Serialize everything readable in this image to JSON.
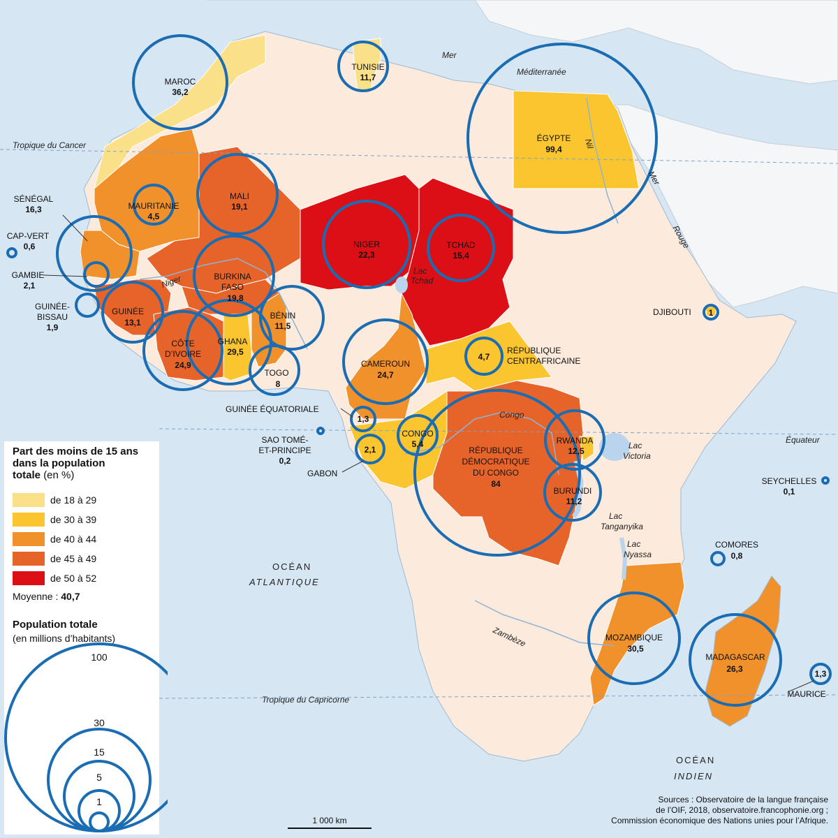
{
  "legend": {
    "title": "Part des moins de 15 ans dans la population",
    "title_line3": "totale",
    "title_unit": "(en %)",
    "classes": [
      {
        "label": "de 18 à 29",
        "color": "#fbe08a"
      },
      {
        "label": "de 30 à 39",
        "color": "#fac52f"
      },
      {
        "label": "de 40 à 44",
        "color": "#f0912c"
      },
      {
        "label": "de 45 à 49",
        "color": "#e6642a"
      },
      {
        "label": "de 50 à 52",
        "color": "#dc0f17"
      }
    ],
    "average_label": "Moyenne :",
    "average_value": "40,7",
    "pop_title": "Population totale",
    "pop_subtitle": "(en millions d’habitants)",
    "pop_circles": [
      "100",
      "30",
      "15",
      "5",
      "1"
    ]
  },
  "seas": {
    "med1": "Mer",
    "med2": "Méditerranée",
    "red1": "Mer",
    "red2": "Rouge",
    "atl1": "OCÉAN",
    "atl2": "ATLANTIQUE",
    "ind1": "OCÉAN",
    "ind2": "INDIEN"
  },
  "lines": {
    "cancer": "Tropique du Cancer",
    "capricorne": "Tropique du Capricorne",
    "equateur": "Équateur"
  },
  "features": {
    "nil": "Nil",
    "niger": "Niger",
    "congo": "Congo",
    "zambeze": "Zambèze",
    "lac_tchad1": "Lac",
    "lac_tchad2": "Tchad",
    "lac_victoria1": "Lac",
    "lac_victoria2": "Victoria",
    "lac_tanganyika1": "Lac",
    "lac_tanganyika2": "Tanganyika",
    "lac_nyassa1": "Lac",
    "lac_nyassa2": "Nyassa"
  },
  "countries": [
    {
      "name": "MAROC",
      "value": "36,2"
    },
    {
      "name": "TUNISIE",
      "value": "11,7"
    },
    {
      "name": "ÉGYPTE",
      "value": "99,4"
    },
    {
      "name": "MAURITANIE",
      "value": "4,5"
    },
    {
      "name": "MALI",
      "value": "19,1"
    },
    {
      "name": "NIGER",
      "value": "22,3"
    },
    {
      "name": "TCHAD",
      "value": "15,4"
    },
    {
      "name": "SÉNÉGAL",
      "value": "16,3"
    },
    {
      "name": "CAP-VERT",
      "value": "0,6"
    },
    {
      "name": "GAMBIE",
      "value": "2,1"
    },
    {
      "name": "GUINÉE-",
      "name2": "BISSAU",
      "value": "1,9"
    },
    {
      "name": "GUINÉE",
      "value": "13,1"
    },
    {
      "name": "BURKINA",
      "name2": "FASO",
      "value": "19,8"
    },
    {
      "name": "BÉNIN",
      "value": "11,5"
    },
    {
      "name": "CÔTE",
      "name2": "D’IVOIRE",
      "value": "24,9"
    },
    {
      "name": "GHANA",
      "value": "29,5"
    },
    {
      "name": "TOGO",
      "value": "8"
    },
    {
      "name": "CAMEROUN",
      "value": "24,7"
    },
    {
      "name": "RÉPUBLIQUE",
      "name2": "CENTRAFRICAINE",
      "value": "4,7"
    },
    {
      "name": "DJIBOUTI",
      "value": "1"
    },
    {
      "name": "GUINÉE ÉQUATORIALE",
      "value": "1,3"
    },
    {
      "name": "SAO TOMÉ-",
      "name2": "ET-PRINCIPE",
      "value": "0,2"
    },
    {
      "name": "GABON",
      "value": "2,1"
    },
    {
      "name": "CONGO",
      "value": "5,4"
    },
    {
      "name": "RÉPUBLIQUE",
      "name2": "DÉMOCRATIQUE",
      "name3": "DU CONGO",
      "value": "84"
    },
    {
      "name": "RWANDA",
      "value": "12,5"
    },
    {
      "name": "BURUNDI",
      "value": "11,2"
    },
    {
      "name": "SEYCHELLES",
      "value": "0,1"
    },
    {
      "name": "COMORES",
      "value": "0,8"
    },
    {
      "name": "MOZAMBIQUE",
      "value": "30,5"
    },
    {
      "name": "MADAGASCAR",
      "value": "26,3"
    },
    {
      "name": "MAURICE",
      "value": "1,3"
    }
  ],
  "scale": "1 000 km",
  "sources": {
    "l1": "Sources : Observatoire de la langue française",
    "l2": "de l’OIF, 2018, observatoire.francophonie.org ;",
    "l3": "Commission économique des Nations unies pour l’Afrique."
  }
}
